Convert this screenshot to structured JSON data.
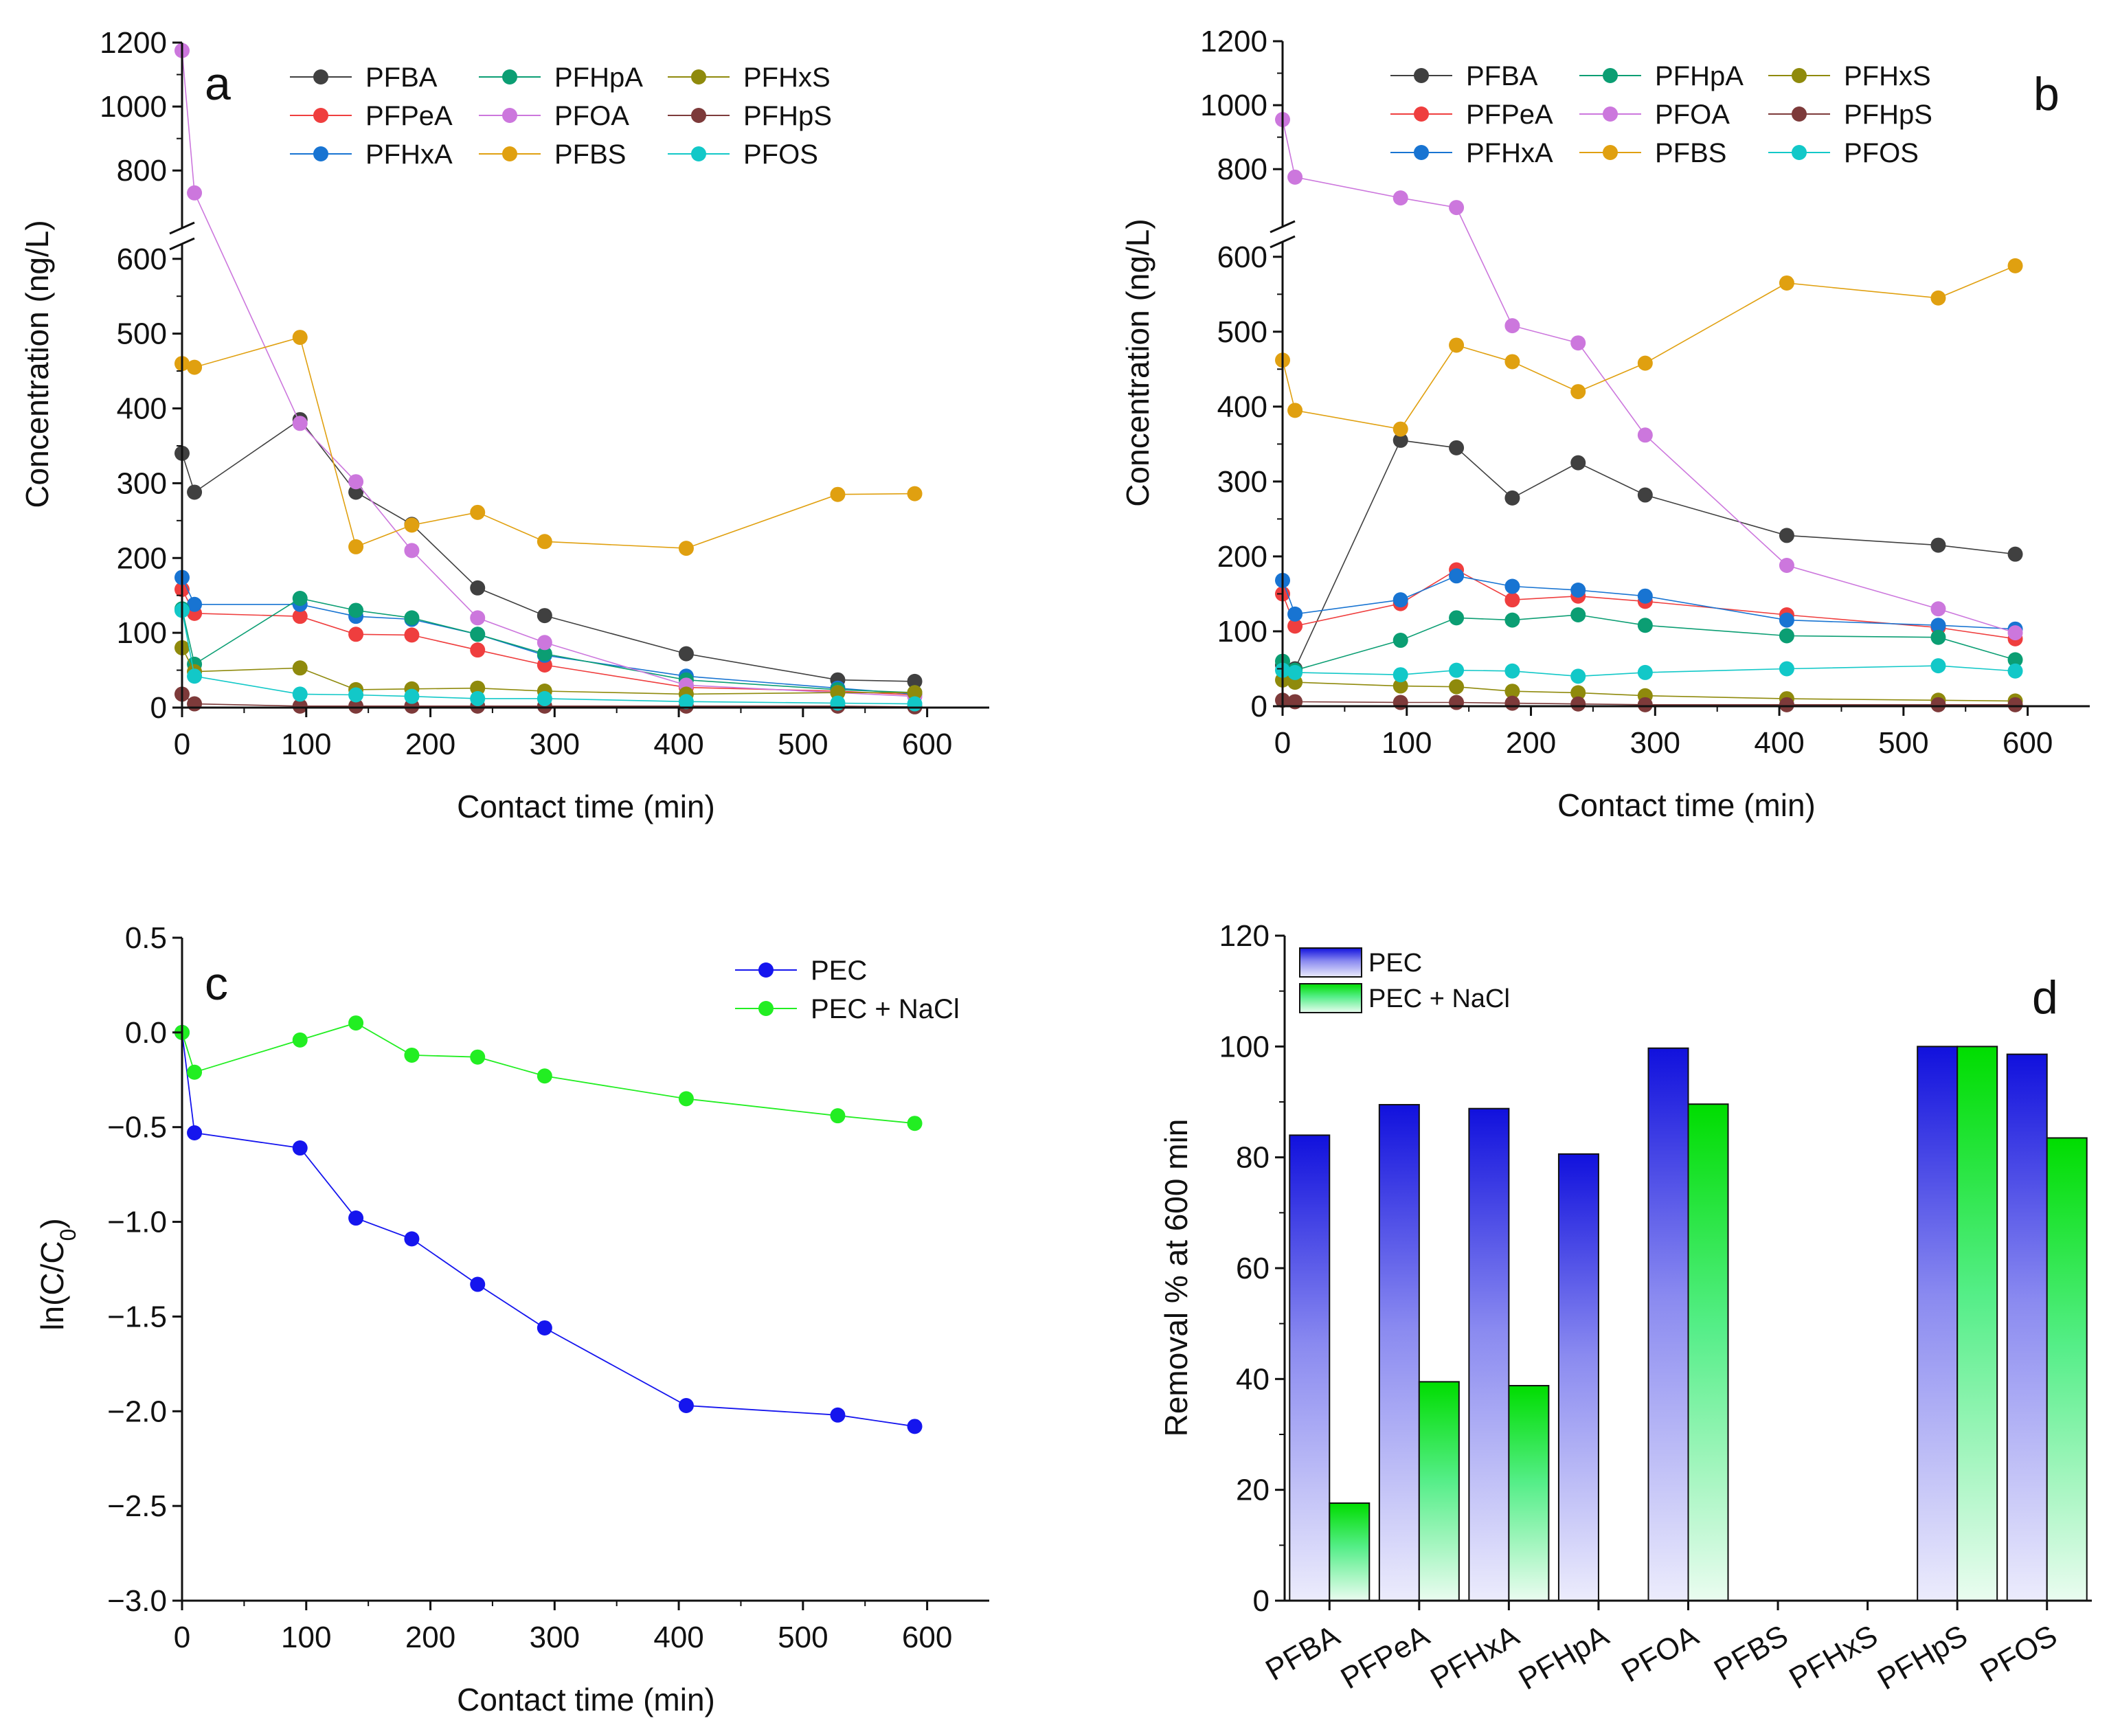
{
  "chart_data": [
    {
      "panel": "a",
      "type": "line",
      "title": "",
      "xlabel": "Contact time (min)",
      "ylabel": "Concentration (ng/L)",
      "xlim": [
        0,
        650
      ],
      "xticks": [
        "0",
        "100",
        "200",
        "300",
        "400",
        "500",
        "600"
      ],
      "ylim_lower": [
        0,
        620
      ],
      "ylim_upper": [
        620,
        1200
      ],
      "yticks": [
        "0",
        "100",
        "200",
        "300",
        "400",
        "500",
        "600",
        "800",
        "1000",
        "1200"
      ],
      "axis_break": true,
      "legend_position": "top",
      "x": [
        0,
        10,
        95,
        140,
        185,
        238,
        292,
        406,
        528,
        590
      ],
      "series": [
        {
          "name": "PFBA",
          "color": "#404040",
          "values": [
            340,
            288,
            385,
            288,
            245,
            160,
            123,
            72,
            37,
            35
          ]
        },
        {
          "name": "PFPeA",
          "color": "#ef3e3e",
          "values": [
            158,
            126,
            122,
            98,
            97,
            77,
            57,
            27,
            22,
            17
          ]
        },
        {
          "name": "PFHxA",
          "color": "#1874d2",
          "values": [
            174,
            138,
            138,
            122,
            118,
            98,
            70,
            42,
            26,
            18
          ]
        },
        {
          "name": "PFHpA",
          "color": "#0b9e73",
          "values": [
            132,
            58,
            146,
            130,
            120,
            98,
            72,
            37,
            24,
            20
          ]
        },
        {
          "name": "PFOA",
          "color": "#cc77dd",
          "values": [
            1175,
            730,
            380,
            302,
            210,
            120,
            87,
            30,
            20,
            15
          ]
        },
        {
          "name": "PFBS",
          "color": "#e0a010",
          "values": [
            460,
            455,
            495,
            215,
            244,
            261,
            222,
            213,
            285,
            286
          ]
        },
        {
          "name": "PFHxS",
          "color": "#8f8a0c",
          "values": [
            80,
            48,
            53,
            24,
            25,
            26,
            22,
            18,
            20,
            20
          ]
        },
        {
          "name": "PFHpS",
          "color": "#7d3a3a",
          "values": [
            18,
            5,
            2,
            2,
            2,
            2,
            2,
            2,
            2,
            1
          ]
        },
        {
          "name": "PFOS",
          "color": "#12c8c8",
          "values": [
            130,
            42,
            18,
            17,
            15,
            12,
            12,
            8,
            6,
            5
          ]
        }
      ]
    },
    {
      "panel": "b",
      "type": "line",
      "title": "",
      "xlabel": "Contact time (min)",
      "ylabel": "Concentration (ng/L)",
      "xlim": [
        0,
        650
      ],
      "xticks": [
        "0",
        "100",
        "200",
        "300",
        "400",
        "500",
        "600"
      ],
      "ylim_lower": [
        0,
        620
      ],
      "ylim_upper": [
        620,
        1200
      ],
      "yticks": [
        "0",
        "100",
        "200",
        "300",
        "400",
        "500",
        "600",
        "800",
        "1000",
        "1200"
      ],
      "axis_break": true,
      "legend_position": "top",
      "x": [
        0,
        10,
        95,
        140,
        185,
        238,
        292,
        406,
        528,
        590
      ],
      "series": [
        {
          "name": "PFBA",
          "color": "#404040",
          "values": [
            55,
            50,
            355,
            345,
            278,
            325,
            282,
            228,
            215,
            203
          ]
        },
        {
          "name": "PFPeA",
          "color": "#ef3e3e",
          "values": [
            150,
            107,
            137,
            182,
            142,
            147,
            140,
            122,
            105,
            90
          ]
        },
        {
          "name": "PFHxA",
          "color": "#1874d2",
          "values": [
            168,
            123,
            142,
            174,
            160,
            155,
            147,
            115,
            108,
            103
          ]
        },
        {
          "name": "PFHpA",
          "color": "#0b9e73",
          "values": [
            60,
            48,
            88,
            118,
            115,
            122,
            108,
            94,
            92,
            62
          ]
        },
        {
          "name": "PFOA",
          "color": "#cc77dd",
          "values": [
            955,
            775,
            710,
            680,
            508,
            485,
            362,
            188,
            130,
            98
          ]
        },
        {
          "name": "PFBS",
          "color": "#e0a010",
          "values": [
            462,
            395,
            370,
            482,
            460,
            420,
            458,
            565,
            545,
            588
          ]
        },
        {
          "name": "PFHxS",
          "color": "#8f8a0c",
          "values": [
            35,
            32,
            27,
            26,
            20,
            18,
            14,
            10,
            8,
            7
          ]
        },
        {
          "name": "PFHpS",
          "color": "#7d3a3a",
          "values": [
            8,
            6,
            5,
            5,
            4,
            3,
            2,
            2,
            2,
            2
          ]
        },
        {
          "name": "PFOS",
          "color": "#12c8c8",
          "values": [
            48,
            45,
            42,
            48,
            47,
            40,
            45,
            50,
            54,
            47
          ]
        }
      ]
    },
    {
      "panel": "c",
      "type": "line",
      "title": "",
      "xlabel": "Contact time (min)",
      "ylabel": "ln(C/C0)",
      "xlim": [
        0,
        650
      ],
      "xticks": [
        "0",
        "100",
        "200",
        "300",
        "400",
        "500",
        "600"
      ],
      "ylim": [
        -3.0,
        0.5
      ],
      "yticks": [
        "0.5",
        "0.0",
        "−0.5",
        "−1.0",
        "−1.5",
        "−2.0",
        "−2.5",
        "−3.0"
      ],
      "legend_position": "top-right",
      "x": [
        0,
        10,
        95,
        140,
        185,
        238,
        292,
        406,
        528,
        590
      ],
      "series": [
        {
          "name": "PEC",
          "color": "#1515ee",
          "values": [
            0.0,
            -0.53,
            -0.61,
            -0.98,
            -1.09,
            -1.33,
            -1.56,
            -1.97,
            -2.02,
            -2.08
          ]
        },
        {
          "name": "PEC + NaCl",
          "color": "#22ee22",
          "values": [
            0.0,
            -0.21,
            -0.04,
            0.05,
            -0.12,
            -0.13,
            -0.23,
            -0.35,
            -0.44,
            -0.48
          ]
        }
      ]
    },
    {
      "panel": "d",
      "type": "bar",
      "title": "",
      "xlabel": "",
      "ylabel": "Removal % at 600 min",
      "ylim": [
        0,
        120
      ],
      "yticks": [
        "0",
        "20",
        "40",
        "60",
        "80",
        "100",
        "120"
      ],
      "legend_position": "top-left",
      "categories": [
        "PFBA",
        "PFPeA",
        "PFHxA",
        "PFHpA",
        "PFOA",
        "PFBS",
        "PFHxS",
        "PFHpS",
        "PFOS"
      ],
      "series": [
        {
          "name": "PEC",
          "color": "#1a1ae8",
          "values": [
            84,
            89.5,
            88.8,
            80.6,
            99.7,
            0,
            0,
            100,
            98.6
          ]
        },
        {
          "name": "PEC + NaCl",
          "color": "#10ee10",
          "values": [
            17.6,
            39.5,
            38.8,
            0,
            89.6,
            0,
            0,
            100,
            83.5
          ]
        }
      ]
    }
  ]
}
